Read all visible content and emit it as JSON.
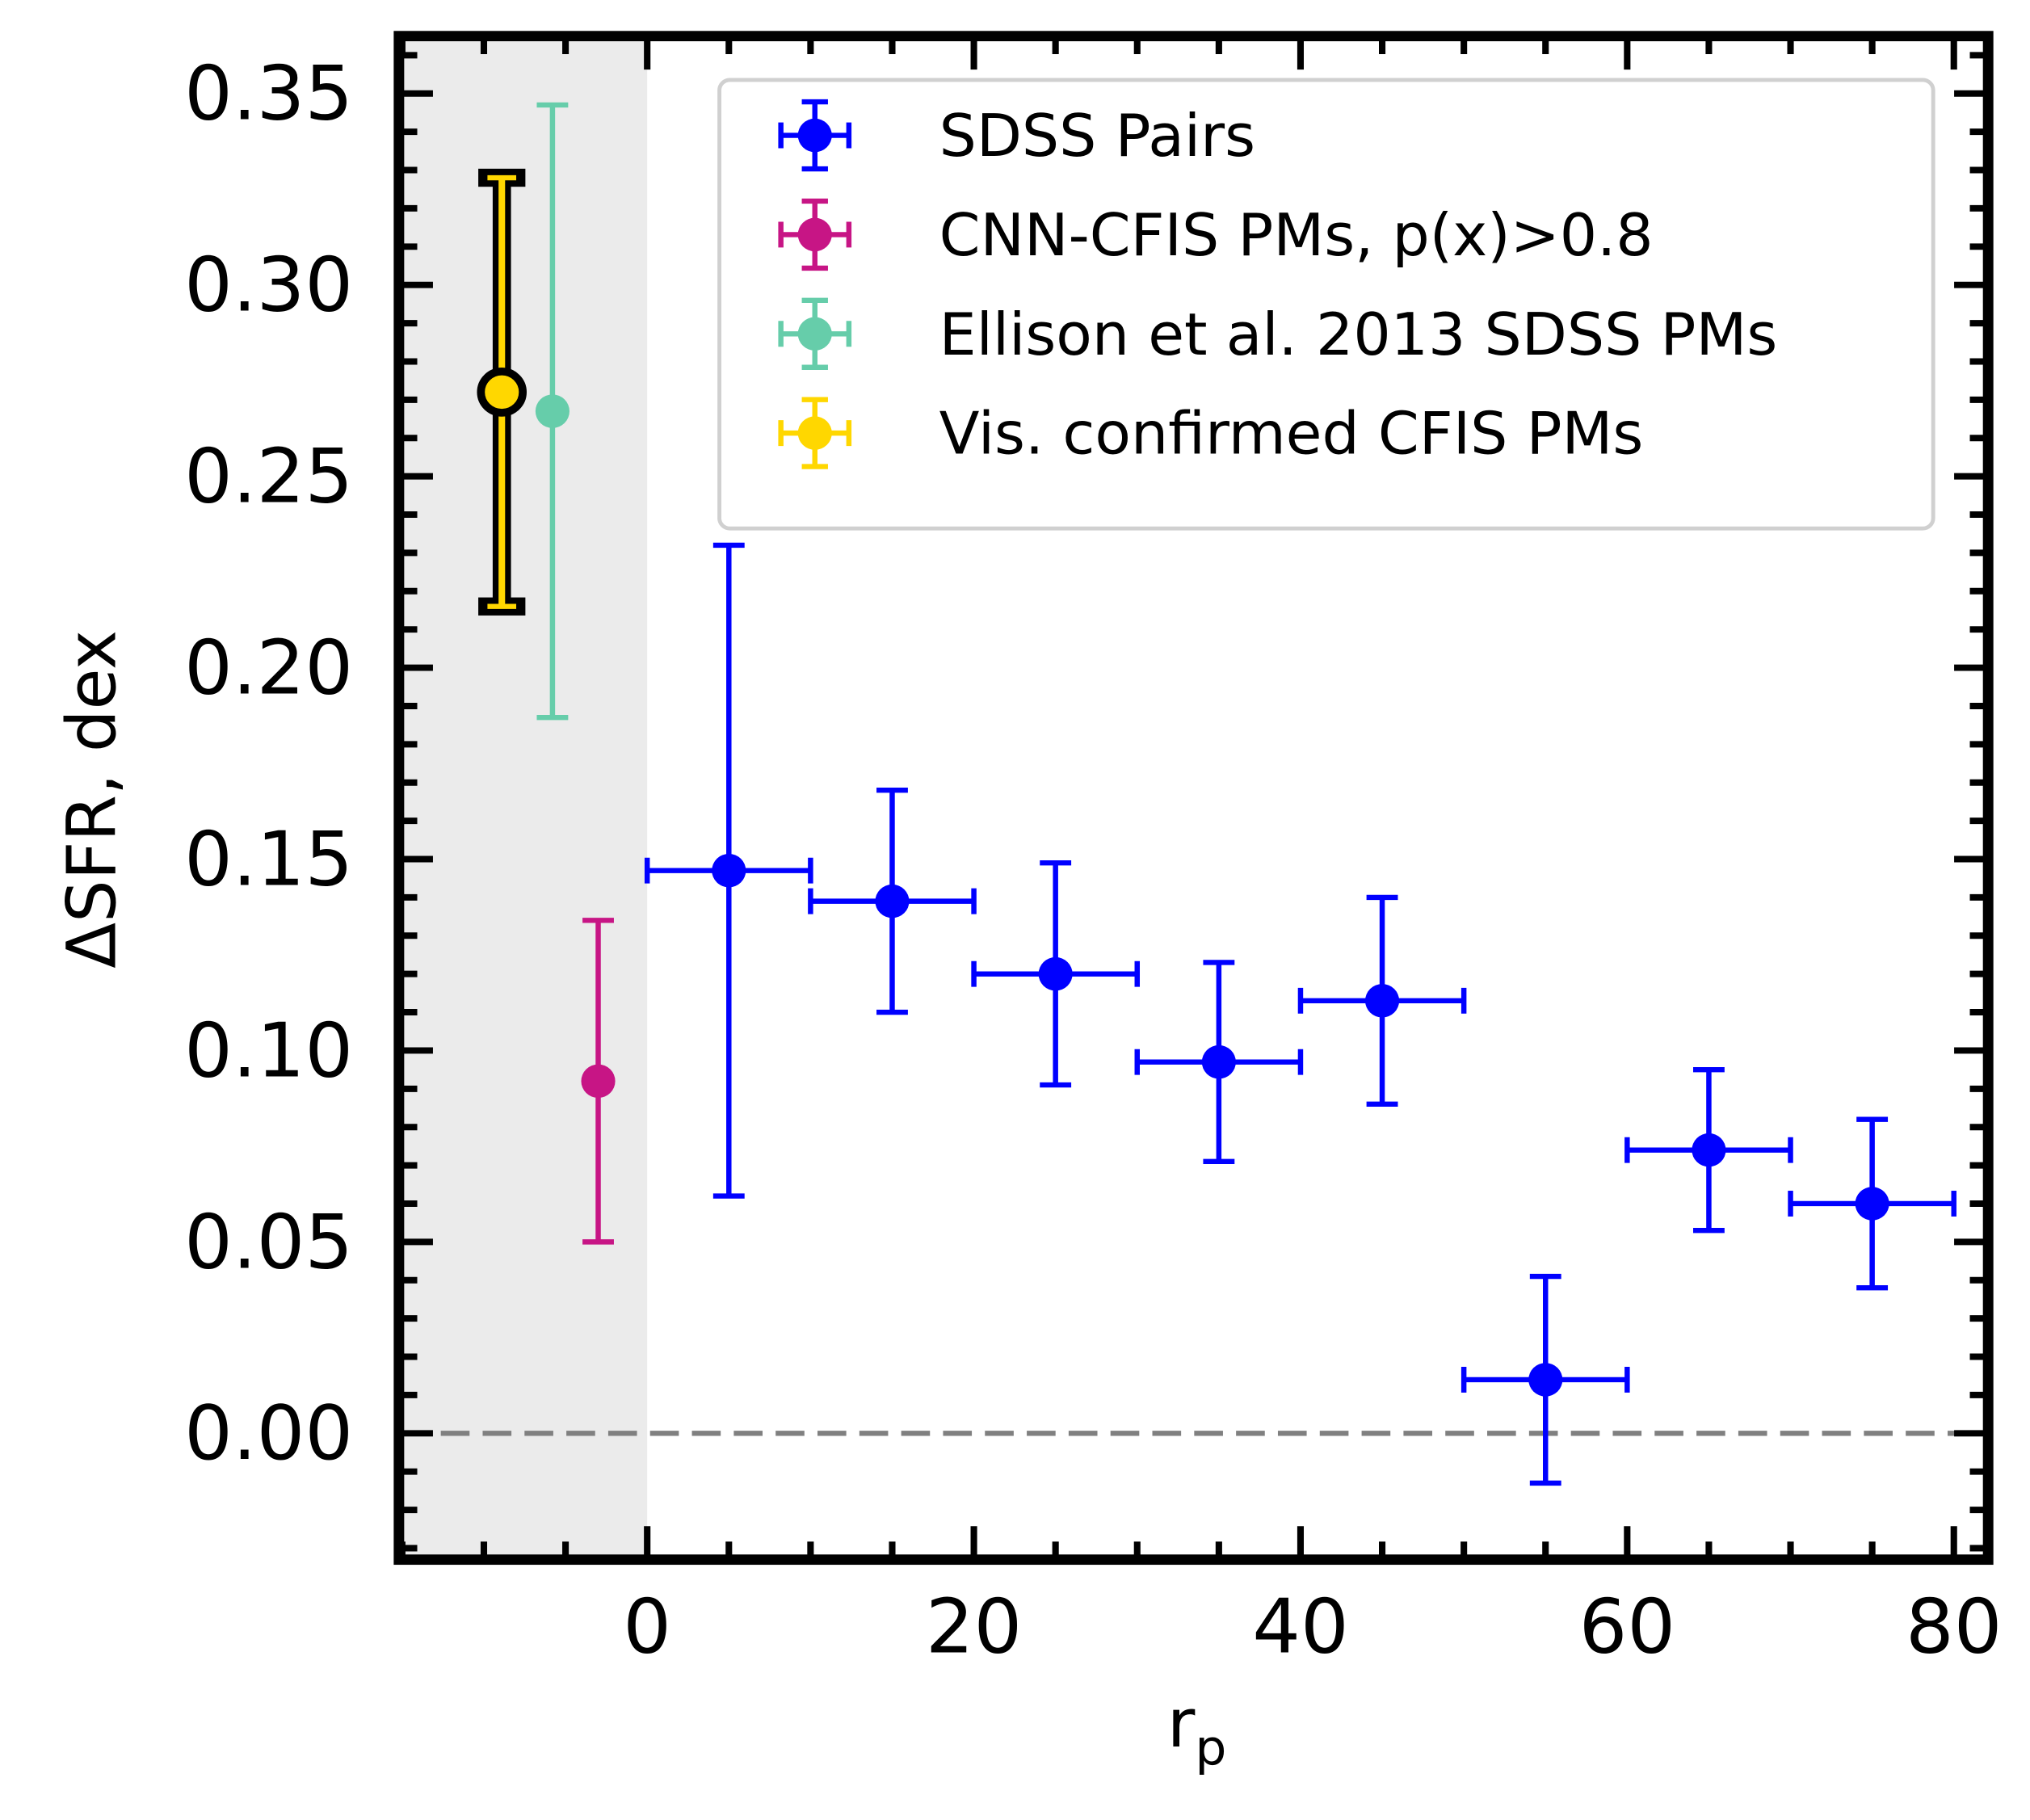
{
  "chart_data": {
    "type": "errorbar",
    "xlabel": "r",
    "xlabel_subscript": "p",
    "ylabel": "ΔSFR, dex",
    "xlim": [
      -15.2,
      82.1
    ],
    "ylim": [
      -0.033,
      0.365
    ],
    "xticks": [
      0,
      20,
      40,
      60,
      80
    ],
    "yticks": [
      {
        "value": 0,
        "label": "0.00"
      },
      {
        "value": 0.05,
        "label": "0.05"
      },
      {
        "value": 0.1,
        "label": "0.10"
      },
      {
        "value": 0.15,
        "label": "0.15"
      },
      {
        "value": 0.2,
        "label": "0.20"
      },
      {
        "value": 0.25,
        "label": "0.25"
      },
      {
        "value": 0.3,
        "label": "0.30"
      },
      {
        "value": 0.35,
        "label": "0.35"
      }
    ],
    "xticks_minor": [
      -15,
      -10,
      -5,
      5,
      10,
      15,
      25,
      30,
      35,
      45,
      50,
      55,
      65,
      70,
      75
    ],
    "yticks_minor": [
      -0.03,
      -0.02,
      -0.01,
      0.01,
      0.02,
      0.03,
      0.04,
      0.06,
      0.07,
      0.08,
      0.09,
      0.11,
      0.12,
      0.13,
      0.14,
      0.16,
      0.17,
      0.18,
      0.19,
      0.21,
      0.22,
      0.23,
      0.24,
      0.26,
      0.27,
      0.28,
      0.29,
      0.31,
      0.32,
      0.33,
      0.34,
      0.36
    ],
    "shaded_region": {
      "x": [
        -15.2,
        0
      ],
      "color": "#ebebeb"
    },
    "hline": {
      "y": 0,
      "color": "#808080",
      "dashed": true
    },
    "legend": "upper right",
    "series": [
      {
        "name": "SDSS Pairs",
        "color": "#0000ff",
        "x": [
          5,
          15,
          25,
          35,
          45,
          55,
          65,
          75
        ],
        "values": [
          0.147,
          0.139,
          0.12,
          0.097,
          0.113,
          0.014,
          0.074,
          0.06
        ],
        "yerr": [
          0.085,
          0.029,
          0.029,
          0.026,
          0.027,
          0.027,
          0.021,
          0.022
        ],
        "xerr": [
          5,
          5,
          5,
          5,
          5,
          5,
          5,
          5
        ]
      },
      {
        "name": "CNN-CFIS PMs, p(x)>0.8",
        "color": "#c71585",
        "x": [
          -3
        ],
        "values": [
          0.092
        ],
        "yerr": [
          0.042
        ]
      },
      {
        "name": "Ellison et al. 2013 SDSS PMs",
        "color": "#66cdaa",
        "x": [
          -5.8
        ],
        "values": [
          0.267
        ],
        "yerr": [
          0.08
        ]
      },
      {
        "name": "Vis. confirmed CFIS PMs",
        "color": "#ffd700",
        "edgecolor": "#000000",
        "x": [
          -8.9
        ],
        "values": [
          0.272
        ],
        "yerr": [
          0.056
        ]
      }
    ]
  }
}
